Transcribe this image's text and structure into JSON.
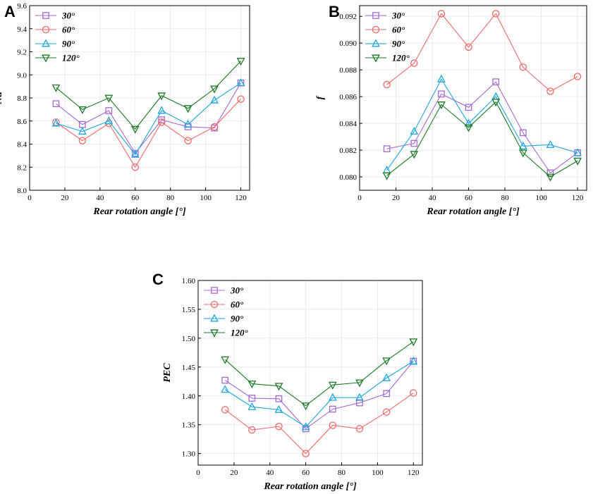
{
  "chart_data": [
    {
      "panel": "A",
      "type": "line",
      "xlabel": "Rear rotation angle [°]",
      "ylabel": "Nu",
      "xlim": [
        0,
        125
      ],
      "ylim": [
        8.0,
        9.6
      ],
      "xticks": [
        0,
        20,
        40,
        60,
        80,
        100,
        120
      ],
      "yticks": [
        8.0,
        8.2,
        8.4,
        8.6,
        8.8,
        9.0,
        9.2,
        9.4,
        9.6
      ],
      "ytick_decimals": 1,
      "legend_position": "top-left",
      "x": [
        15,
        30,
        45,
        60,
        75,
        90,
        105,
        120
      ],
      "series": [
        {
          "name": "30°",
          "color": "#a46ad0",
          "marker": "square",
          "values": [
            8.75,
            8.57,
            8.69,
            8.32,
            8.61,
            8.55,
            8.54,
            8.93
          ]
        },
        {
          "name": "60°",
          "color": "#ee6b6b",
          "marker": "circle",
          "values": [
            8.59,
            8.43,
            8.58,
            8.2,
            8.59,
            8.43,
            8.55,
            8.79
          ]
        },
        {
          "name": "90°",
          "color": "#1fa6dd",
          "marker": "triangle-up",
          "values": [
            8.58,
            8.51,
            8.6,
            8.31,
            8.69,
            8.57,
            8.78,
            8.93
          ]
        },
        {
          "name": "120°",
          "color": "#1c7a26",
          "marker": "triangle-down",
          "values": [
            8.89,
            8.7,
            8.8,
            8.53,
            8.82,
            8.71,
            8.88,
            9.12
          ]
        }
      ]
    },
    {
      "panel": "B",
      "type": "line",
      "xlabel": "Rear rotation angle [°]",
      "ylabel": "f",
      "xlim": [
        0,
        125
      ],
      "ylim": [
        0.079,
        0.0928
      ],
      "xticks": [
        0,
        20,
        40,
        60,
        80,
        100,
        120
      ],
      "yticks": [
        0.08,
        0.082,
        0.084,
        0.086,
        0.088,
        0.09,
        0.092
      ],
      "ytick_decimals": 3,
      "legend_position": "top-left",
      "x": [
        15,
        30,
        45,
        60,
        75,
        90,
        105,
        120
      ],
      "series": [
        {
          "name": "30°",
          "color": "#a46ad0",
          "marker": "square",
          "values": [
            0.0821,
            0.0825,
            0.0862,
            0.0852,
            0.0871,
            0.0833,
            0.0803,
            0.0818
          ]
        },
        {
          "name": "60°",
          "color": "#ee6b6b",
          "marker": "circle",
          "values": [
            0.0869,
            0.0885,
            0.0922,
            0.0897,
            0.0922,
            0.0882,
            0.0864,
            0.0875
          ]
        },
        {
          "name": "90°",
          "color": "#1fa6dd",
          "marker": "triangle-up",
          "values": [
            0.0805,
            0.0834,
            0.0873,
            0.084,
            0.086,
            0.0823,
            0.0824,
            0.0818
          ]
        },
        {
          "name": "120°",
          "color": "#1c7a26",
          "marker": "triangle-down",
          "values": [
            0.0801,
            0.0817,
            0.0854,
            0.0837,
            0.0856,
            0.0818,
            0.08,
            0.0812
          ]
        }
      ]
    },
    {
      "panel": "C",
      "type": "line",
      "xlabel": "Rear rotation angle [°]",
      "ylabel": "PEC",
      "xlim": [
        0,
        125
      ],
      "ylim": [
        1.28,
        1.6
      ],
      "xticks": [
        0,
        20,
        40,
        60,
        80,
        100,
        120
      ],
      "yticks": [
        1.3,
        1.35,
        1.4,
        1.45,
        1.5,
        1.55,
        1.6
      ],
      "ytick_decimals": 2,
      "legend_position": "top-left",
      "x": [
        15,
        30,
        45,
        60,
        75,
        90,
        105,
        120
      ],
      "series": [
        {
          "name": "30°",
          "color": "#a46ad0",
          "marker": "square",
          "values": [
            1.427,
            1.396,
            1.395,
            1.343,
            1.377,
            1.388,
            1.404,
            1.46
          ]
        },
        {
          "name": "60°",
          "color": "#ee6b6b",
          "marker": "circle",
          "values": [
            1.376,
            1.341,
            1.347,
            1.3,
            1.349,
            1.343,
            1.372,
            1.405
          ]
        },
        {
          "name": "90°",
          "color": "#1fa6dd",
          "marker": "triangle-up",
          "values": [
            1.411,
            1.381,
            1.376,
            1.346,
            1.397,
            1.397,
            1.431,
            1.46
          ]
        },
        {
          "name": "120°",
          "color": "#1c7a26",
          "marker": "triangle-down",
          "values": [
            1.463,
            1.421,
            1.417,
            1.383,
            1.419,
            1.423,
            1.461,
            1.494
          ]
        }
      ]
    }
  ]
}
